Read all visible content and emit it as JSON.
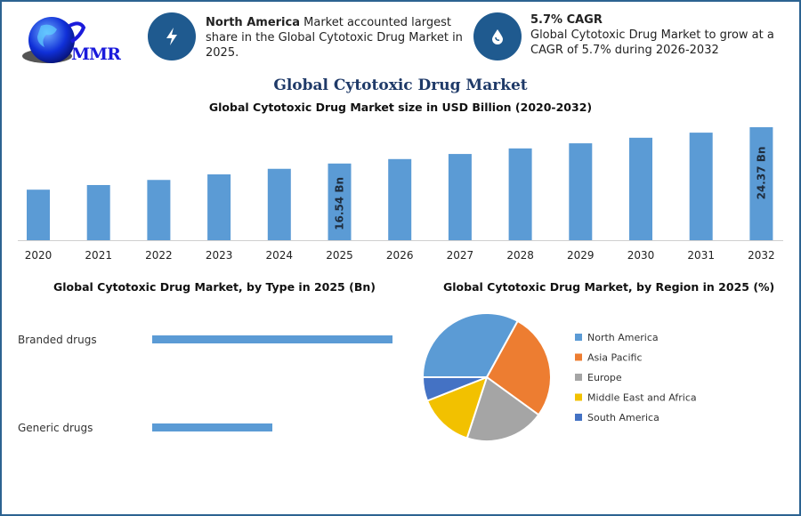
{
  "logo": {
    "text": "MMR"
  },
  "info_left": {
    "icon": "lightning-icon",
    "bold": "North America",
    "text": " Market accounted largest share in the Global Cytotoxic Drug Market in 2025."
  },
  "info_right": {
    "icon": "drop-icon",
    "bold": "5.7% CAGR",
    "text": "Global Cytotoxic Drug Market to grow at a CAGR of 5.7% during 2026-2032"
  },
  "title": "Global Cytotoxic Drug Market",
  "colors": {
    "bar": "#5b9bd5",
    "frame": "#2c6391",
    "icon_bg": "#1f5a8f"
  },
  "chart_data": [
    {
      "type": "bar",
      "title": "Global Cytotoxic Drug Market size in USD Billion (2020-2032)",
      "categories": [
        "2020",
        "2021",
        "2022",
        "2023",
        "2024",
        "2025",
        "2026",
        "2027",
        "2028",
        "2029",
        "2030",
        "2031",
        "2032"
      ],
      "values": [
        10.9,
        11.9,
        13.0,
        14.2,
        15.4,
        16.54,
        17.5,
        18.6,
        19.8,
        20.9,
        22.1,
        23.2,
        24.37
      ],
      "data_labels": {
        "5": "16.54 Bn",
        "12": "24.37 Bn"
      },
      "ylim": [
        0,
        25
      ],
      "xlabel": "",
      "ylabel": "",
      "grid": false
    },
    {
      "type": "bar",
      "orientation": "horizontal",
      "title": "Global Cytotoxic Drug Market, by Type in 2025 (Bn)",
      "categories": [
        "Branded drugs",
        "Generic drugs"
      ],
      "values": [
        100,
        50
      ],
      "value_scale": "relative"
    },
    {
      "type": "pie",
      "title": "Global Cytotoxic Drug Market, by Region in 2025 (%)",
      "categories": [
        "North America",
        "Asia Pacific",
        "Europe",
        "Middle East and Africa",
        "South America"
      ],
      "values": [
        33,
        27,
        20,
        14,
        6
      ],
      "colors": [
        "#5b9bd5",
        "#ed7d31",
        "#a5a5a5",
        "#f2c100",
        "#4472c4"
      ],
      "legend": "right"
    }
  ]
}
